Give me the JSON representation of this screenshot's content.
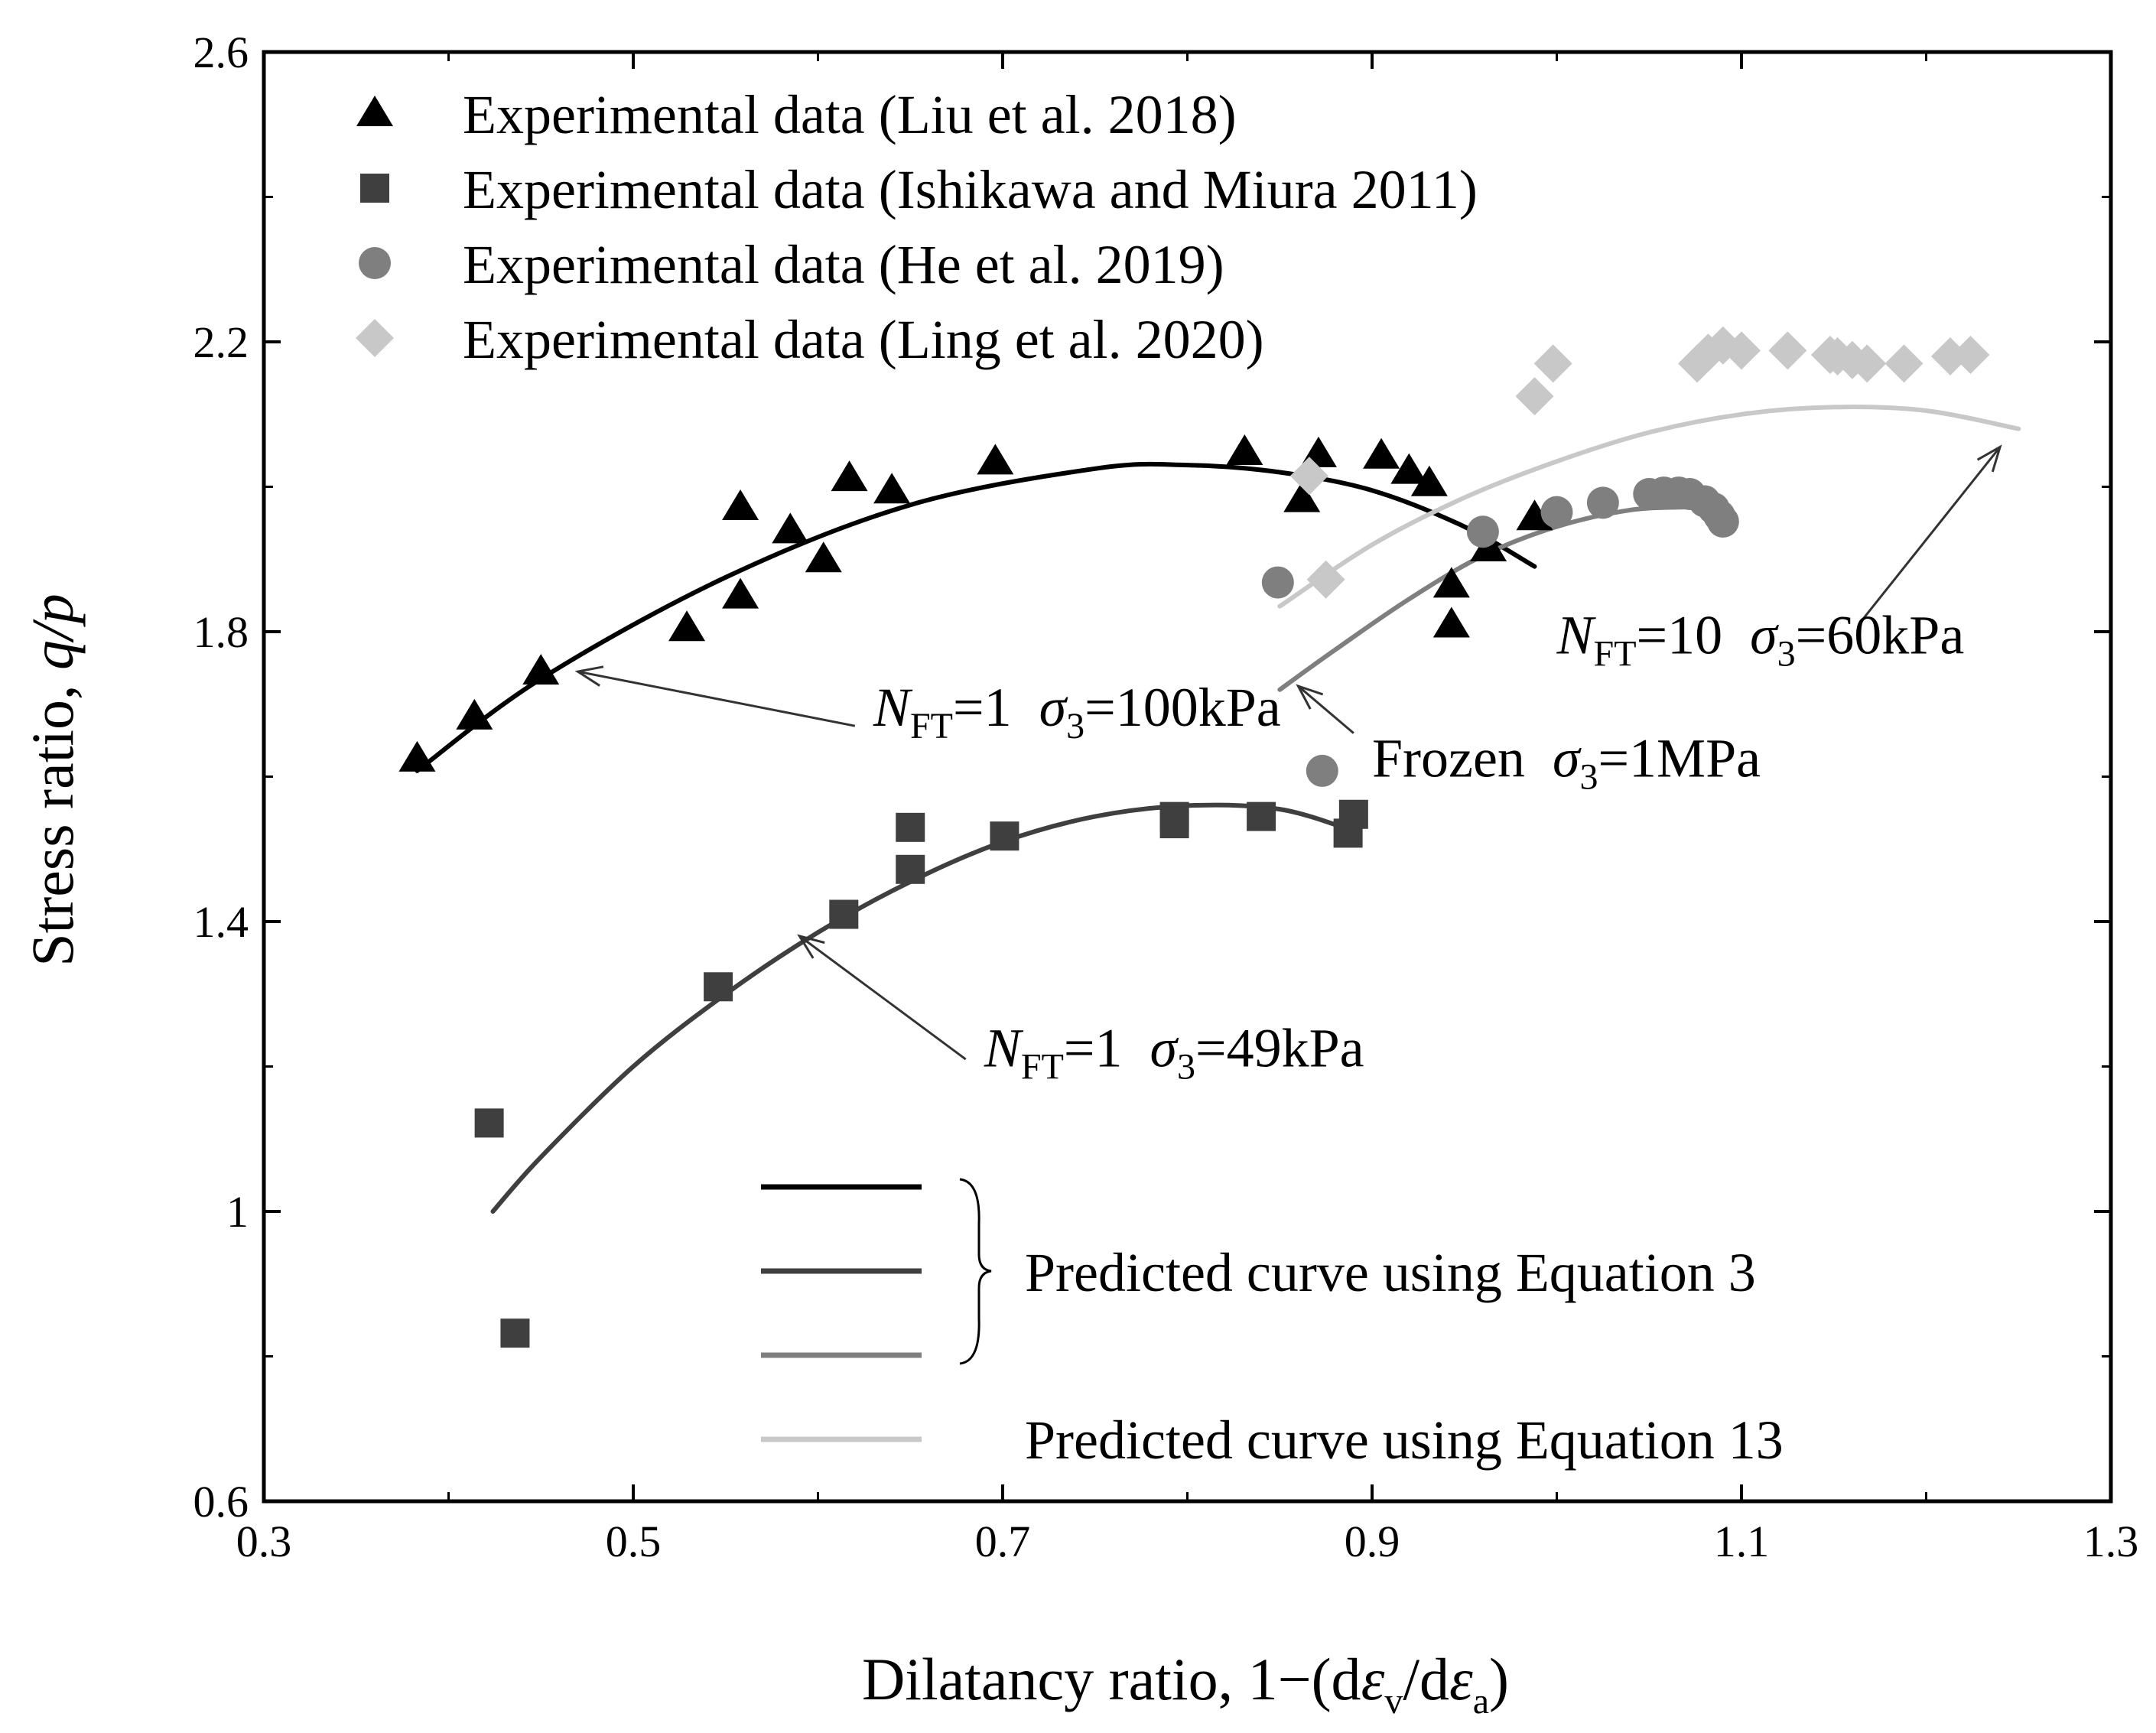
{
  "chart_data": {
    "type": "scatter",
    "xlabel_main": "Dilatancy ratio, 1−(d",
    "xlabel_eps": "ε",
    "xlabel_sub_v": "v",
    "xlabel_slash": "/d",
    "xlabel_sub_a": "a",
    "xlabel_close": ")",
    "ylabel_main": "Stress ratio, ",
    "ylabel_var": "q/p",
    "xlim": [
      0.3,
      1.3
    ],
    "ylim": [
      0.6,
      2.6
    ],
    "xticks": [
      "0.3",
      "0.5",
      "0.7",
      "0.9",
      "1.1",
      "1.3"
    ],
    "yticks": [
      "0.6",
      "1",
      "1.4",
      "1.8",
      "2.2",
      "2.6"
    ],
    "grid": false,
    "legend_position": "top-left",
    "series": [
      {
        "name": "Experimental data (Liu et al. 2018)",
        "marker": "triangle",
        "color": "#000000",
        "points": [
          [
            0.383,
            1.625
          ],
          [
            0.414,
            1.683
          ],
          [
            0.45,
            1.745
          ],
          [
            0.529,
            1.805
          ],
          [
            0.558,
            1.972
          ],
          [
            0.558,
            1.85
          ],
          [
            0.585,
            1.94
          ],
          [
            0.603,
            1.9
          ],
          [
            0.617,
            2.012
          ],
          [
            0.64,
            1.995
          ],
          [
            0.696,
            2.035
          ],
          [
            0.831,
            2.048
          ],
          [
            0.862,
            1.983
          ],
          [
            0.871,
            2.045
          ],
          [
            0.905,
            2.043
          ],
          [
            0.92,
            2.022
          ],
          [
            0.931,
            2.005
          ],
          [
            0.943,
            1.865
          ],
          [
            0.943,
            1.81
          ],
          [
            0.963,
            1.915
          ],
          [
            0.988,
            1.958
          ]
        ]
      },
      {
        "name": "Experimental data (Ishikawa and Miura 2011)",
        "marker": "square",
        "color": "#3f3f3f",
        "points": [
          [
            0.422,
            1.122
          ],
          [
            0.436,
            0.832
          ],
          [
            0.546,
            1.31
          ],
          [
            0.614,
            1.41
          ],
          [
            0.65,
            1.472
          ],
          [
            0.65,
            1.53
          ],
          [
            0.701,
            1.518
          ],
          [
            0.793,
            1.535
          ],
          [
            0.793,
            1.545
          ],
          [
            0.84,
            1.545
          ],
          [
            0.887,
            1.522
          ],
          [
            0.89,
            1.548
          ]
        ]
      },
      {
        "name": "Experimental data (He et al. 2019)",
        "marker": "circle",
        "color": "#7f7f7f",
        "points": [
          [
            0.849,
            1.868
          ],
          [
            0.873,
            1.608
          ],
          [
            0.96,
            1.938
          ],
          [
            1.0,
            1.965
          ],
          [
            1.025,
            1.978
          ],
          [
            1.05,
            1.99
          ],
          [
            1.058,
            1.992
          ],
          [
            1.066,
            1.992
          ],
          [
            1.072,
            1.99
          ],
          [
            1.08,
            1.98
          ],
          [
            1.085,
            1.97
          ],
          [
            1.088,
            1.96
          ],
          [
            1.09,
            1.952
          ]
        ]
      },
      {
        "name": "Experimental data (Ling et al. 2020)",
        "marker": "diamond",
        "color": "#c8c8c8",
        "points": [
          [
            0.866,
            2.015
          ],
          [
            0.875,
            1.872
          ],
          [
            0.988,
            2.125
          ],
          [
            0.998,
            2.17
          ],
          [
            1.076,
            2.17
          ],
          [
            1.082,
            2.185
          ],
          [
            1.09,
            2.195
          ],
          [
            1.1,
            2.188
          ],
          [
            1.125,
            2.188
          ],
          [
            1.148,
            2.182
          ],
          [
            1.152,
            2.18
          ],
          [
            1.16,
            2.175
          ],
          [
            1.168,
            2.17
          ],
          [
            1.188,
            2.17
          ],
          [
            1.213,
            2.18
          ],
          [
            1.224,
            2.182
          ]
        ]
      }
    ],
    "curves": [
      {
        "color": "#000000",
        "points": [
          [
            0.383,
            1.608
          ],
          [
            0.45,
            1.735
          ],
          [
            0.55,
            1.875
          ],
          [
            0.65,
            1.975
          ],
          [
            0.75,
            2.025
          ],
          [
            0.8,
            2.03
          ],
          [
            0.85,
            2.02
          ],
          [
            0.9,
            1.995
          ],
          [
            0.95,
            1.945
          ],
          [
            0.988,
            1.89
          ]
        ]
      },
      {
        "color": "#3f3f3f",
        "points": [
          [
            0.424,
            1.0
          ],
          [
            0.45,
            1.075
          ],
          [
            0.5,
            1.2
          ],
          [
            0.55,
            1.3
          ],
          [
            0.6,
            1.385
          ],
          [
            0.65,
            1.455
          ],
          [
            0.7,
            1.51
          ],
          [
            0.75,
            1.545
          ],
          [
            0.8,
            1.56
          ],
          [
            0.85,
            1.555
          ],
          [
            0.89,
            1.525
          ]
        ]
      },
      {
        "color": "#7f7f7f",
        "points": [
          [
            0.85,
            1.72
          ],
          [
            0.88,
            1.775
          ],
          [
            0.92,
            1.845
          ],
          [
            0.96,
            1.905
          ],
          [
            1.0,
            1.945
          ],
          [
            1.04,
            1.968
          ],
          [
            1.07,
            1.972
          ]
        ]
      },
      {
        "color": "#c8c8c8",
        "points": [
          [
            0.85,
            1.835
          ],
          [
            0.9,
            1.92
          ],
          [
            0.95,
            1.985
          ],
          [
            1.0,
            2.035
          ],
          [
            1.05,
            2.075
          ],
          [
            1.1,
            2.1
          ],
          [
            1.15,
            2.11
          ],
          [
            1.2,
            2.105
          ],
          [
            1.25,
            2.08
          ]
        ]
      }
    ],
    "annotations": [
      {
        "id": "a1",
        "N": "N",
        "N_sub": "FT",
        "N_val": "=1",
        "sigma": "σ",
        "sigma_sub": "3",
        "sigma_val": "=100kPa",
        "text_x": 0.63,
        "text_y": 1.67,
        "arrow_from": [
          0.62,
          1.67
        ],
        "arrow_to": [
          0.47,
          1.745
        ]
      },
      {
        "id": "a2",
        "N": "N",
        "N_sub": "FT",
        "N_val": "=1",
        "sigma": "σ",
        "sigma_sub": "3",
        "sigma_val": "=49kPa",
        "text_x": 0.69,
        "text_y": 1.2,
        "arrow_from": [
          0.68,
          1.21
        ],
        "arrow_to": [
          0.59,
          1.38
        ]
      },
      {
        "id": "a3",
        "N": "N",
        "N_sub": "FT",
        "N_val": "=10",
        "sigma": "σ",
        "sigma_sub": "3",
        "sigma_val": "=60kPa",
        "text_x": 1.0,
        "text_y": 1.77,
        "arrow_from": [
          1.165,
          1.815
        ],
        "arrow_to": [
          1.24,
          2.055
        ]
      },
      {
        "id": "a4",
        "prefix": "Frozen",
        "sigma": "σ",
        "sigma_sub": "3",
        "sigma_val": "=1MPa",
        "text_x": 0.9,
        "text_y": 1.6,
        "arrow_from": [
          0.89,
          1.66
        ],
        "arrow_to": [
          0.86,
          1.725
        ]
      }
    ],
    "predicted_legend": {
      "eq3_label": "Predicted curve using Equation 3",
      "eq13_label": "Predicted curve using Equation 13",
      "line_colors": [
        "#000000",
        "#3f3f3f",
        "#7f7f7f",
        "#c8c8c8"
      ]
    }
  }
}
